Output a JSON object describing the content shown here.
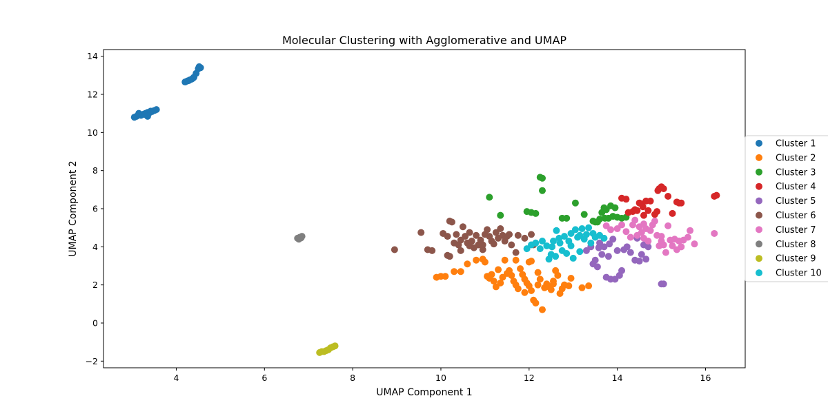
{
  "chart_data": {
    "type": "scatter",
    "title": "Molecular Clustering with Agglomerative and UMAP",
    "xlabel": "UMAP Component 1",
    "ylabel": "UMAP Component 2",
    "xlim": [
      2.35,
      16.9
    ],
    "ylim": [
      -2.35,
      14.35
    ],
    "xticks": [
      4,
      6,
      8,
      10,
      12,
      14,
      16
    ],
    "yticks": [
      -2,
      0,
      2,
      4,
      6,
      8,
      10,
      12,
      14
    ],
    "grid": false,
    "legend_position": "right-center, outside plot",
    "series": [
      {
        "name": "Cluster 1",
        "color": "#1f77b4",
        "points": [
          [
            3.05,
            10.8
          ],
          [
            3.1,
            10.85
          ],
          [
            3.15,
            10.95
          ],
          [
            3.2,
            10.9
          ],
          [
            3.25,
            10.95
          ],
          [
            3.3,
            11.0
          ],
          [
            3.35,
            11.05
          ],
          [
            3.4,
            11.05
          ],
          [
            3.45,
            11.1
          ],
          [
            3.5,
            11.15
          ],
          [
            3.55,
            11.2
          ],
          [
            3.35,
            10.85
          ],
          [
            3.15,
            11.0
          ],
          [
            3.28,
            10.95
          ],
          [
            3.42,
            11.12
          ],
          [
            4.2,
            12.65
          ],
          [
            4.25,
            12.7
          ],
          [
            4.3,
            12.75
          ],
          [
            4.35,
            12.8
          ],
          [
            4.4,
            12.9
          ],
          [
            4.45,
            13.1
          ],
          [
            4.5,
            13.35
          ],
          [
            4.55,
            13.4
          ],
          [
            4.52,
            13.45
          ],
          [
            4.38,
            12.85
          ],
          [
            4.28,
            12.72
          ]
        ]
      },
      {
        "name": "Cluster 2",
        "color": "#ff7f0e",
        "points": [
          [
            9.9,
            2.4
          ],
          [
            10.0,
            2.45
          ],
          [
            10.1,
            2.45
          ],
          [
            10.3,
            2.7
          ],
          [
            10.45,
            2.7
          ],
          [
            10.6,
            3.1
          ],
          [
            10.8,
            3.3
          ],
          [
            10.95,
            3.35
          ],
          [
            11.0,
            3.2
          ],
          [
            11.05,
            2.45
          ],
          [
            11.1,
            2.35
          ],
          [
            11.2,
            2.2
          ],
          [
            11.25,
            1.9
          ],
          [
            11.35,
            2.1
          ],
          [
            11.4,
            2.4
          ],
          [
            11.5,
            2.6
          ],
          [
            11.55,
            2.75
          ],
          [
            11.6,
            2.5
          ],
          [
            11.65,
            2.2
          ],
          [
            11.7,
            2.0
          ],
          [
            11.75,
            1.8
          ],
          [
            11.8,
            2.85
          ],
          [
            11.85,
            2.55
          ],
          [
            11.9,
            2.3
          ],
          [
            11.95,
            2.1
          ],
          [
            12.0,
            1.95
          ],
          [
            12.05,
            1.7
          ],
          [
            12.1,
            1.2
          ],
          [
            12.15,
            1.05
          ],
          [
            12.2,
            2.0
          ],
          [
            12.25,
            2.3
          ],
          [
            12.3,
            0.7
          ],
          [
            12.35,
            1.85
          ],
          [
            12.4,
            2.05
          ],
          [
            12.45,
            1.9
          ],
          [
            12.5,
            1.75
          ],
          [
            12.55,
            2.05
          ],
          [
            12.6,
            2.75
          ],
          [
            12.65,
            2.5
          ],
          [
            12.7,
            1.55
          ],
          [
            12.75,
            1.8
          ],
          [
            12.8,
            2.0
          ],
          [
            12.9,
            1.95
          ],
          [
            12.95,
            2.35
          ],
          [
            13.2,
            1.85
          ],
          [
            13.35,
            1.95
          ],
          [
            11.3,
            2.8
          ],
          [
            11.15,
            2.55
          ],
          [
            12.0,
            3.2
          ],
          [
            11.9,
            1.6
          ],
          [
            12.2,
            2.65
          ],
          [
            11.45,
            3.3
          ],
          [
            11.7,
            3.3
          ],
          [
            12.05,
            3.25
          ],
          [
            12.55,
            2.2
          ]
        ]
      },
      {
        "name": "Cluster 3",
        "color": "#2ca02c",
        "points": [
          [
            11.1,
            6.6
          ],
          [
            11.35,
            5.65
          ],
          [
            11.95,
            5.85
          ],
          [
            12.05,
            5.8
          ],
          [
            12.15,
            5.75
          ],
          [
            12.25,
            7.65
          ],
          [
            12.3,
            7.6
          ],
          [
            12.3,
            6.95
          ],
          [
            12.75,
            5.5
          ],
          [
            12.85,
            5.5
          ],
          [
            13.05,
            6.3
          ],
          [
            13.25,
            5.7
          ],
          [
            13.45,
            5.35
          ],
          [
            13.5,
            5.3
          ],
          [
            13.6,
            5.45
          ],
          [
            13.65,
            5.8
          ],
          [
            13.7,
            6.05
          ],
          [
            13.75,
            5.95
          ],
          [
            13.8,
            5.5
          ],
          [
            13.85,
            6.15
          ],
          [
            13.9,
            5.6
          ],
          [
            13.95,
            6.05
          ],
          [
            14.0,
            5.55
          ],
          [
            14.1,
            5.5
          ],
          [
            14.2,
            5.55
          ],
          [
            13.55,
            5.3
          ],
          [
            13.72,
            5.5
          ]
        ]
      },
      {
        "name": "Cluster 4",
        "color": "#d62728",
        "points": [
          [
            14.1,
            6.55
          ],
          [
            14.2,
            6.5
          ],
          [
            14.25,
            5.8
          ],
          [
            14.35,
            5.85
          ],
          [
            14.45,
            5.9
          ],
          [
            14.5,
            6.3
          ],
          [
            14.55,
            6.25
          ],
          [
            14.6,
            5.65
          ],
          [
            14.65,
            6.4
          ],
          [
            14.7,
            5.9
          ],
          [
            14.75,
            6.4
          ],
          [
            14.85,
            5.7
          ],
          [
            14.9,
            5.85
          ],
          [
            14.95,
            7.05
          ],
          [
            15.0,
            7.15
          ],
          [
            15.05,
            7.05
          ],
          [
            15.15,
            6.65
          ],
          [
            15.25,
            5.75
          ],
          [
            15.35,
            6.35
          ],
          [
            15.4,
            6.3
          ],
          [
            15.45,
            6.3
          ],
          [
            14.4,
            5.95
          ],
          [
            14.58,
            6.1
          ],
          [
            16.2,
            6.65
          ],
          [
            16.25,
            6.7
          ],
          [
            14.92,
            6.95
          ]
        ]
      },
      {
        "name": "Cluster 5",
        "color": "#9467bd",
        "points": [
          [
            13.3,
            3.8
          ],
          [
            13.4,
            4.0
          ],
          [
            13.45,
            3.1
          ],
          [
            13.5,
            3.3
          ],
          [
            13.55,
            2.95
          ],
          [
            13.6,
            4.2
          ],
          [
            13.65,
            3.6
          ],
          [
            13.7,
            4.0
          ],
          [
            13.75,
            2.4
          ],
          [
            13.8,
            3.5
          ],
          [
            13.85,
            2.3
          ],
          [
            13.9,
            4.4
          ],
          [
            13.95,
            2.3
          ],
          [
            14.0,
            3.8
          ],
          [
            14.05,
            2.5
          ],
          [
            14.1,
            2.75
          ],
          [
            14.15,
            3.85
          ],
          [
            14.3,
            3.7
          ],
          [
            14.4,
            3.3
          ],
          [
            14.45,
            4.45
          ],
          [
            14.5,
            3.25
          ],
          [
            14.55,
            3.6
          ],
          [
            14.6,
            4.1
          ],
          [
            14.65,
            3.35
          ],
          [
            14.7,
            4.0
          ],
          [
            15.0,
            2.05
          ],
          [
            15.05,
            2.05
          ],
          [
            13.58,
            3.95
          ],
          [
            13.82,
            4.15
          ],
          [
            14.22,
            4.0
          ]
        ]
      },
      {
        "name": "Cluster 6",
        "color": "#8c564b",
        "points": [
          [
            8.95,
            3.85
          ],
          [
            9.55,
            4.75
          ],
          [
            9.7,
            3.85
          ],
          [
            9.8,
            3.8
          ],
          [
            10.05,
            4.7
          ],
          [
            10.15,
            3.55
          ],
          [
            10.2,
            3.5
          ],
          [
            10.2,
            5.35
          ],
          [
            10.25,
            5.3
          ],
          [
            10.3,
            4.2
          ],
          [
            10.35,
            4.65
          ],
          [
            10.4,
            4.1
          ],
          [
            10.45,
            4.35
          ],
          [
            10.5,
            5.05
          ],
          [
            10.55,
            4.55
          ],
          [
            10.6,
            4.2
          ],
          [
            10.65,
            4.75
          ],
          [
            10.7,
            4.3
          ],
          [
            10.75,
            3.95
          ],
          [
            10.8,
            4.6
          ],
          [
            10.85,
            4.1
          ],
          [
            10.9,
            4.35
          ],
          [
            10.95,
            4.1
          ],
          [
            11.0,
            4.65
          ],
          [
            11.05,
            4.9
          ],
          [
            11.1,
            4.55
          ],
          [
            11.15,
            4.3
          ],
          [
            11.2,
            4.15
          ],
          [
            11.25,
            4.75
          ],
          [
            11.3,
            4.45
          ],
          [
            11.35,
            4.95
          ],
          [
            11.4,
            4.6
          ],
          [
            11.45,
            4.3
          ],
          [
            11.5,
            4.55
          ],
          [
            11.55,
            4.65
          ],
          [
            11.6,
            4.1
          ],
          [
            11.7,
            3.7
          ],
          [
            11.75,
            4.6
          ],
          [
            11.9,
            4.45
          ],
          [
            12.05,
            4.65
          ],
          [
            12.1,
            4.1
          ],
          [
            10.15,
            4.55
          ],
          [
            10.45,
            3.8
          ],
          [
            10.65,
            4.05
          ],
          [
            10.95,
            3.85
          ]
        ]
      },
      {
        "name": "Cluster 7",
        "color": "#e377c2",
        "points": [
          [
            13.75,
            5.1
          ],
          [
            13.85,
            4.9
          ],
          [
            14.0,
            4.95
          ],
          [
            14.1,
            5.15
          ],
          [
            14.2,
            4.8
          ],
          [
            14.3,
            4.5
          ],
          [
            14.35,
            5.15
          ],
          [
            14.4,
            5.4
          ],
          [
            14.45,
            4.6
          ],
          [
            14.5,
            5.05
          ],
          [
            14.55,
            4.75
          ],
          [
            14.6,
            5.2
          ],
          [
            14.65,
            4.95
          ],
          [
            14.7,
            4.3
          ],
          [
            14.75,
            4.85
          ],
          [
            14.8,
            5.15
          ],
          [
            14.85,
            5.35
          ],
          [
            14.9,
            4.6
          ],
          [
            14.95,
            4.05
          ],
          [
            15.0,
            4.3
          ],
          [
            15.05,
            4.1
          ],
          [
            15.1,
            3.7
          ],
          [
            15.15,
            5.1
          ],
          [
            15.2,
            4.35
          ],
          [
            15.25,
            4.05
          ],
          [
            15.3,
            4.4
          ],
          [
            15.35,
            3.85
          ],
          [
            15.4,
            4.3
          ],
          [
            15.45,
            4.0
          ],
          [
            15.5,
            4.35
          ],
          [
            15.6,
            4.5
          ],
          [
            15.65,
            4.85
          ],
          [
            15.75,
            4.15
          ],
          [
            16.2,
            4.7
          ],
          [
            15.0,
            4.55
          ],
          [
            14.6,
            4.45
          ]
        ]
      },
      {
        "name": "Cluster 8",
        "color": "#7f7f7f",
        "points": [
          [
            6.75,
            4.45
          ],
          [
            6.8,
            4.5
          ],
          [
            6.85,
            4.55
          ],
          [
            6.78,
            4.4
          ],
          [
            6.83,
            4.47
          ]
        ]
      },
      {
        "name": "Cluster 9",
        "color": "#bcbd22",
        "points": [
          [
            7.25,
            -1.55
          ],
          [
            7.3,
            -1.5
          ],
          [
            7.35,
            -1.5
          ],
          [
            7.4,
            -1.45
          ],
          [
            7.45,
            -1.4
          ],
          [
            7.5,
            -1.3
          ],
          [
            7.55,
            -1.25
          ],
          [
            7.6,
            -1.2
          ]
        ]
      },
      {
        "name": "Cluster 10",
        "color": "#17becf",
        "points": [
          [
            11.95,
            3.9
          ],
          [
            12.05,
            4.1
          ],
          [
            12.15,
            4.2
          ],
          [
            12.25,
            3.9
          ],
          [
            12.3,
            4.3
          ],
          [
            12.4,
            4.05
          ],
          [
            12.45,
            3.35
          ],
          [
            12.5,
            3.6
          ],
          [
            12.55,
            4.3
          ],
          [
            12.6,
            3.5
          ],
          [
            12.62,
            4.85
          ],
          [
            12.7,
            4.2
          ],
          [
            12.75,
            3.8
          ],
          [
            12.8,
            4.55
          ],
          [
            12.85,
            3.65
          ],
          [
            12.9,
            4.3
          ],
          [
            12.95,
            4.7
          ],
          [
            13.0,
            3.4
          ],
          [
            13.05,
            4.9
          ],
          [
            13.1,
            4.5
          ],
          [
            13.15,
            3.75
          ],
          [
            13.2,
            4.95
          ],
          [
            13.25,
            4.4
          ],
          [
            13.3,
            4.65
          ],
          [
            13.35,
            5.0
          ],
          [
            13.4,
            4.2
          ],
          [
            13.45,
            4.7
          ],
          [
            13.5,
            4.5
          ],
          [
            13.6,
            4.6
          ],
          [
            13.7,
            4.45
          ],
          [
            12.68,
            4.45
          ],
          [
            12.95,
            4.05
          ],
          [
            13.15,
            4.6
          ],
          [
            12.52,
            4.0
          ]
        ]
      }
    ]
  }
}
